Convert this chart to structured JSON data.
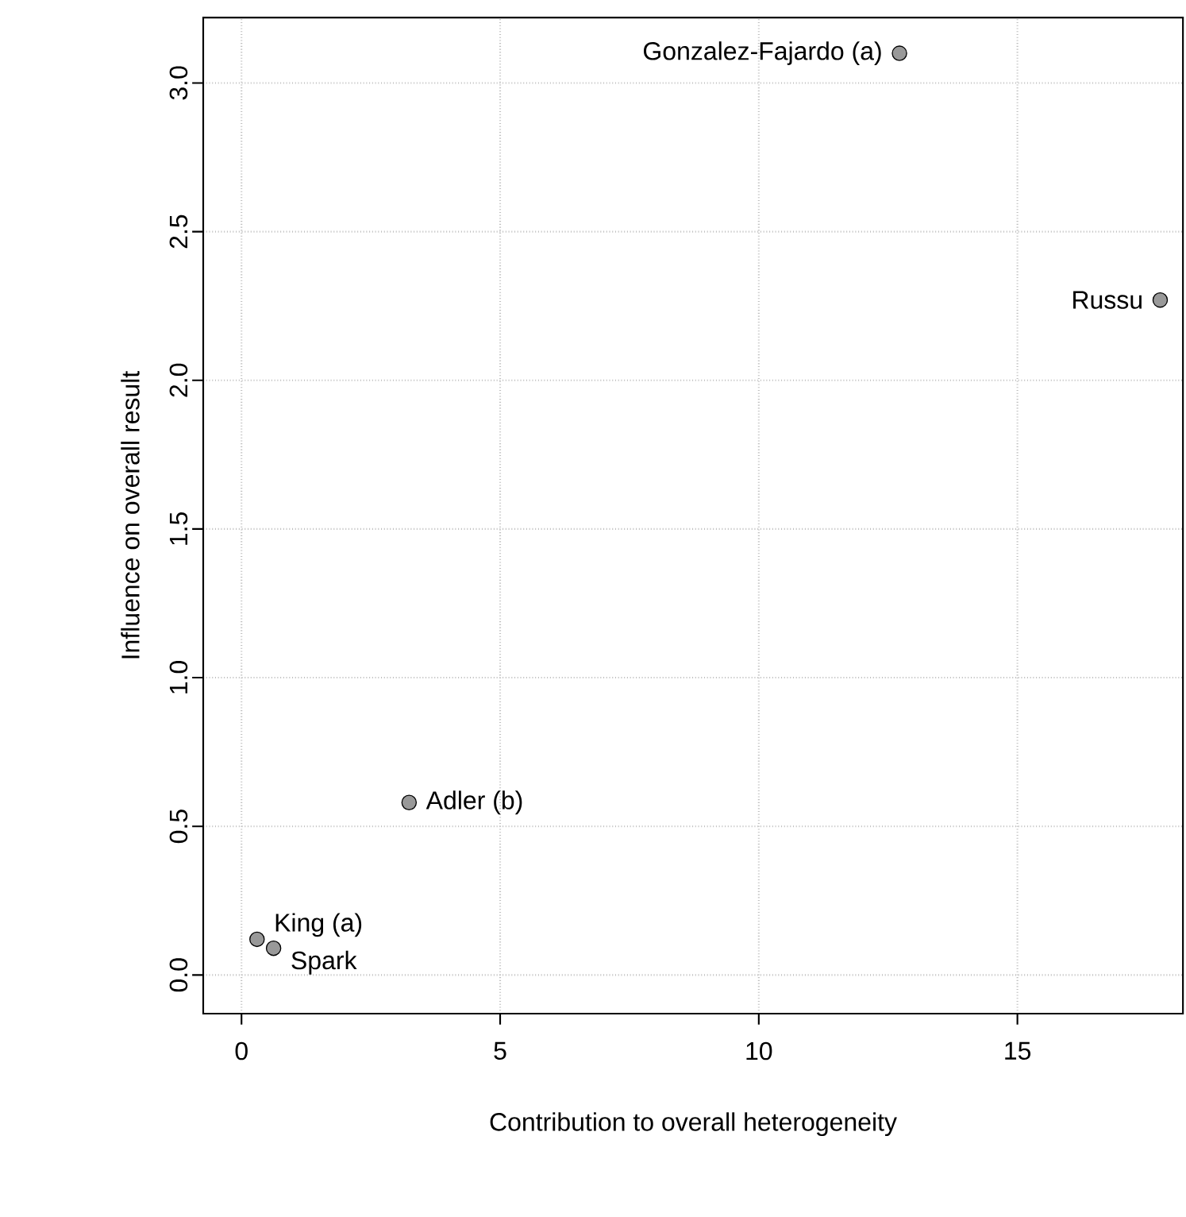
{
  "chart_data": {
    "type": "scatter",
    "xlabel": "Contribution to overall heterogeneity",
    "ylabel": "Influence on overall result",
    "series": [
      {
        "color": "#999999",
        "x": [
          0.3,
          0.62,
          3.24,
          12.72,
          17.76
        ],
        "values": [
          0.12,
          0.09,
          0.58,
          3.1,
          2.27
        ]
      }
    ],
    "marker": "circle",
    "grid": true,
    "xlim": [
      -0.74,
      18.2
    ],
    "ylim": [
      -0.13,
      3.22
    ],
    "xticks": [
      0,
      5,
      10,
      15
    ],
    "yticks": [
      {
        "value": 0,
        "label": "0.0"
      },
      0.5,
      {
        "value": 1,
        "label": "1.0"
      },
      1.5,
      {
        "value": 2,
        "label": "2.0"
      },
      2.5,
      {
        "value": 3,
        "label": "3.0"
      }
    ],
    "annotations": [
      {
        "text": "King (a)",
        "x": 0.3,
        "y": 0.12
      },
      {
        "text": "Spark",
        "x": 0.62,
        "y": 0.09
      },
      {
        "text": "Adler (b)",
        "x": 3.24,
        "y": 0.58
      },
      {
        "text": "Gonzalez-Fajardo (a)",
        "x": 12.72,
        "y": 3.1
      },
      {
        "text": "Russu",
        "x": 17.76,
        "y": 2.27
      }
    ]
  }
}
